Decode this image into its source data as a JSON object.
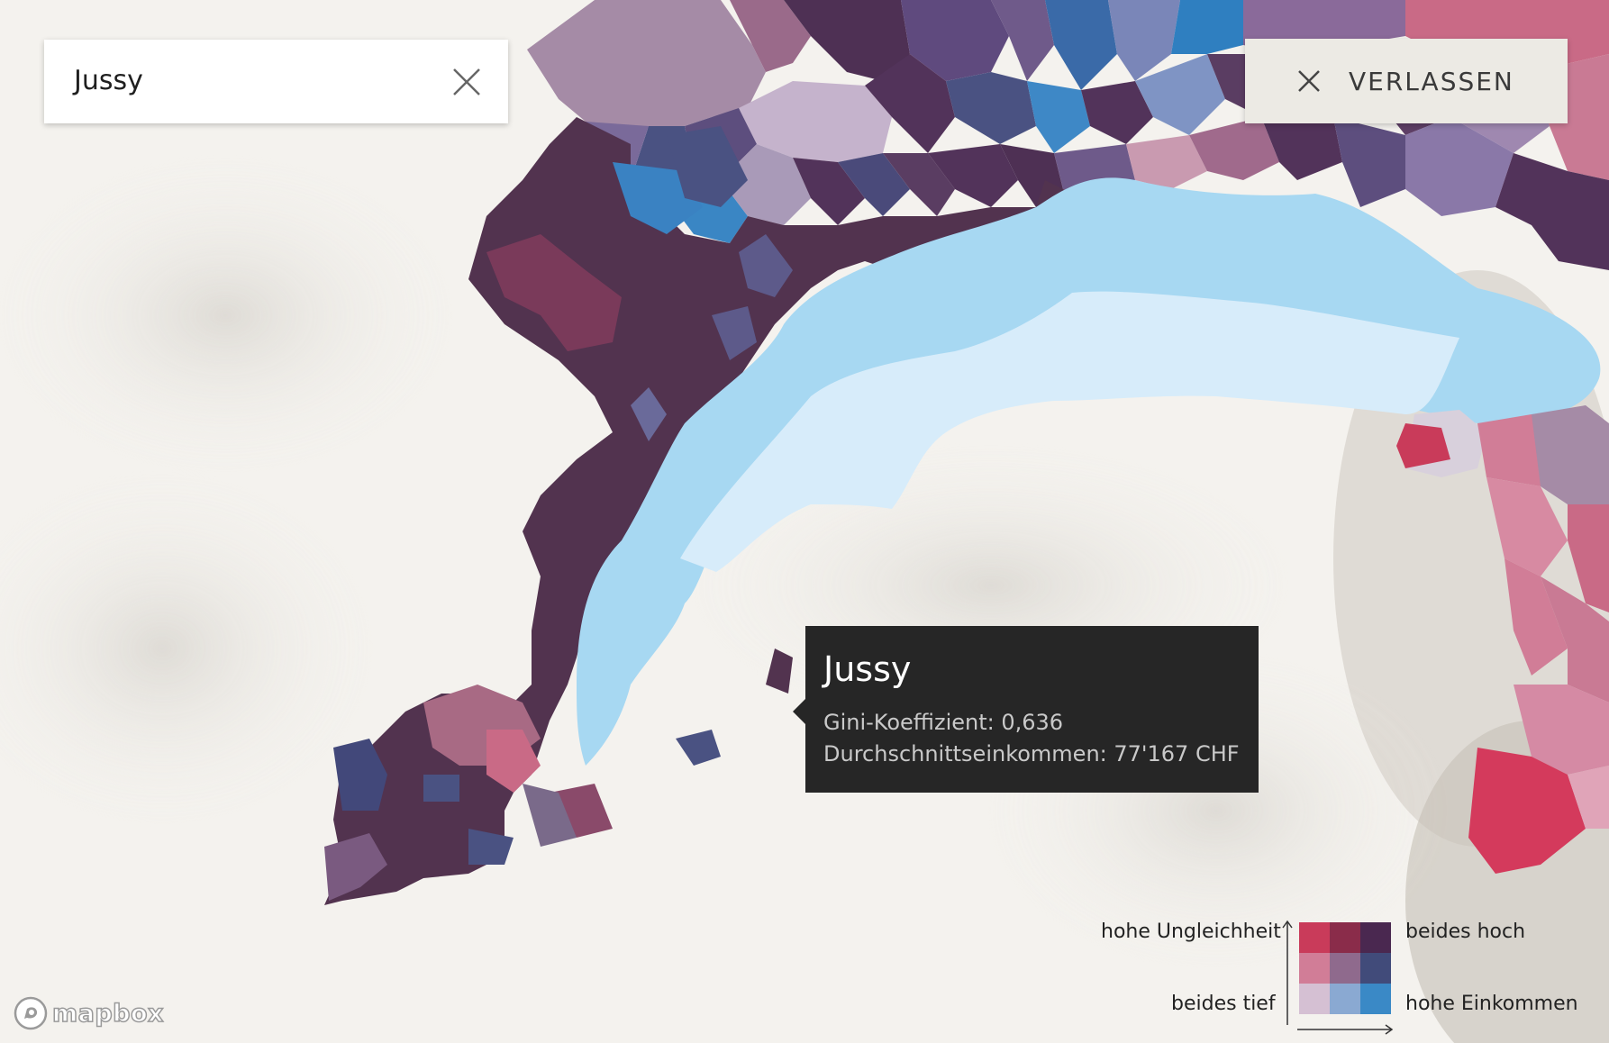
{
  "search": {
    "value": "Jussy",
    "clear_icon": "close-icon"
  },
  "exit_button": {
    "label": "VERLASSEN",
    "icon": "close-icon"
  },
  "tooltip": {
    "name": "Jussy",
    "gini_label": "Gini-Koeffizient: 0,636",
    "income_label": "Durchschnittseinkommen: 77'167 CHF"
  },
  "legend": {
    "top_left_label": "hohe Ungleichheit",
    "top_right_label": "beides hoch",
    "bottom_left_label": "beides tief",
    "bottom_right_label": "hohe Einkommen",
    "colors": [
      [
        "#c93b5a",
        "#8a2c4a",
        "#4a2850"
      ],
      [
        "#d17d97",
        "#8f6a8d",
        "#414b7a"
      ],
      [
        "#d5c0d3",
        "#8aa9d2",
        "#3a89c6"
      ]
    ]
  },
  "map": {
    "lake_color": "#a7d8f2",
    "lake_secondary_color": "#d7ecfa",
    "land_color": "#f4f2ee",
    "dominant_region_color": "#52334f"
  },
  "attribution": {
    "logo_text": "mapbox"
  }
}
